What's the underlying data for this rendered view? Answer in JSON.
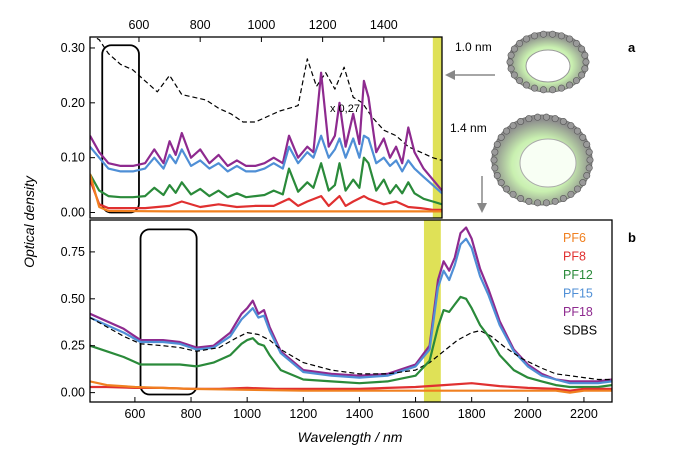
{
  "chart_data": [
    {
      "id": "a",
      "type": "line",
      "panel_label": "a",
      "xlabel": "",
      "ylabel": "",
      "xlim": [
        440,
        1590
      ],
      "ylim": [
        -0.01,
        0.32
      ],
      "x_ticks": [
        600,
        800,
        1000,
        1200,
        1400
      ],
      "y_ticks": [
        0.0,
        0.1,
        0.2,
        0.3
      ],
      "y_tick_labels": [
        "0.00",
        "0.10",
        "0.20",
        "0.30"
      ],
      "x_tick_position": "top",
      "highlight_band": [
        1560,
        1590
      ],
      "highlight_color": "#d9dc3a",
      "boxed_region": {
        "x": [
          480,
          600
        ],
        "y": [
          0.0,
          0.305
        ]
      },
      "annotation": "x 0,27",
      "series": [
        {
          "name": "SDBS",
          "color": "#000000",
          "dashed": true,
          "x": [
            440,
            470,
            500,
            540,
            580,
            620,
            660,
            700,
            740,
            780,
            820,
            860,
            900,
            940,
            980,
            1020,
            1060,
            1090,
            1120,
            1150,
            1180,
            1210,
            1240,
            1270,
            1300,
            1330,
            1360,
            1400,
            1440,
            1480,
            1520,
            1560,
            1590
          ],
          "y": [
            0.325,
            0.315,
            0.29,
            0.27,
            0.26,
            0.24,
            0.22,
            0.25,
            0.215,
            0.21,
            0.205,
            0.19,
            0.18,
            0.165,
            0.165,
            0.175,
            0.185,
            0.19,
            0.195,
            0.28,
            0.23,
            0.255,
            0.225,
            0.265,
            0.21,
            0.2,
            0.175,
            0.15,
            0.14,
            0.12,
            0.11,
            0.1,
            0.095
          ]
        },
        {
          "name": "PF18",
          "color": "#8e2a8f",
          "dashed": false,
          "x": [
            440,
            470,
            500,
            540,
            580,
            620,
            650,
            680,
            700,
            720,
            740,
            770,
            800,
            830,
            860,
            890,
            920,
            950,
            980,
            1010,
            1040,
            1070,
            1090,
            1120,
            1150,
            1170,
            1195,
            1220,
            1240,
            1255,
            1275,
            1300,
            1320,
            1335,
            1350,
            1375,
            1400,
            1420,
            1440,
            1460,
            1480,
            1500,
            1530,
            1560,
            1590
          ],
          "y": [
            0.14,
            0.11,
            0.09,
            0.085,
            0.085,
            0.09,
            0.115,
            0.09,
            0.13,
            0.105,
            0.145,
            0.1,
            0.115,
            0.09,
            0.105,
            0.085,
            0.095,
            0.085,
            0.085,
            0.09,
            0.1,
            0.09,
            0.14,
            0.1,
            0.12,
            0.11,
            0.255,
            0.12,
            0.14,
            0.2,
            0.12,
            0.18,
            0.125,
            0.24,
            0.21,
            0.11,
            0.135,
            0.1,
            0.12,
            0.09,
            0.155,
            0.11,
            0.08,
            0.06,
            0.04
          ]
        },
        {
          "name": "PF15",
          "color": "#4f8fd6",
          "dashed": false,
          "x": [
            440,
            470,
            500,
            540,
            580,
            620,
            650,
            680,
            700,
            720,
            740,
            770,
            800,
            830,
            860,
            890,
            920,
            950,
            980,
            1010,
            1040,
            1070,
            1090,
            1120,
            1150,
            1170,
            1195,
            1220,
            1240,
            1255,
            1275,
            1300,
            1320,
            1335,
            1350,
            1375,
            1400,
            1420,
            1440,
            1460,
            1480,
            1500,
            1530,
            1560,
            1590
          ],
          "y": [
            0.12,
            0.1,
            0.08,
            0.075,
            0.075,
            0.08,
            0.1,
            0.08,
            0.105,
            0.09,
            0.115,
            0.085,
            0.095,
            0.08,
            0.09,
            0.075,
            0.085,
            0.075,
            0.075,
            0.08,
            0.09,
            0.08,
            0.12,
            0.09,
            0.11,
            0.1,
            0.14,
            0.1,
            0.115,
            0.135,
            0.1,
            0.135,
            0.1,
            0.14,
            0.135,
            0.09,
            0.1,
            0.085,
            0.095,
            0.075,
            0.095,
            0.08,
            0.065,
            0.05,
            0.035
          ]
        },
        {
          "name": "PF12",
          "color": "#2a8a3a",
          "dashed": false,
          "x": [
            440,
            470,
            500,
            540,
            580,
            620,
            650,
            680,
            700,
            720,
            740,
            770,
            800,
            830,
            860,
            890,
            920,
            950,
            980,
            1010,
            1040,
            1070,
            1090,
            1120,
            1150,
            1170,
            1195,
            1220,
            1240,
            1255,
            1275,
            1300,
            1320,
            1335,
            1350,
            1375,
            1400,
            1420,
            1440,
            1460,
            1480,
            1500,
            1530,
            1560,
            1590
          ],
          "y": [
            0.07,
            0.04,
            0.03,
            0.028,
            0.028,
            0.03,
            0.045,
            0.032,
            0.05,
            0.036,
            0.055,
            0.033,
            0.043,
            0.03,
            0.04,
            0.028,
            0.035,
            0.028,
            0.03,
            0.032,
            0.04,
            0.033,
            0.08,
            0.038,
            0.055,
            0.045,
            0.09,
            0.04,
            0.05,
            0.09,
            0.04,
            0.06,
            0.045,
            0.1,
            0.09,
            0.04,
            0.06,
            0.035,
            0.05,
            0.035,
            0.055,
            0.035,
            0.025,
            0.02,
            0.015
          ]
        },
        {
          "name": "PF8",
          "color": "#e03030",
          "dashed": false,
          "x": [
            440,
            470,
            500,
            560,
            620,
            700,
            740,
            800,
            860,
            920,
            980,
            1040,
            1090,
            1120,
            1150,
            1195,
            1220,
            1255,
            1275,
            1300,
            1335,
            1350,
            1400,
            1440,
            1480,
            1520,
            1560,
            1590
          ],
          "y": [
            0.06,
            0.015,
            0.008,
            0.008,
            0.008,
            0.012,
            0.02,
            0.01,
            0.015,
            0.01,
            0.012,
            0.012,
            0.025,
            0.012,
            0.02,
            0.03,
            0.012,
            0.03,
            0.012,
            0.02,
            0.03,
            0.025,
            0.015,
            0.02,
            0.01,
            0.008,
            0.005,
            0.005
          ]
        },
        {
          "name": "PF6",
          "color": "#f08020",
          "dashed": false,
          "x": [
            440,
            470,
            500,
            700,
            900,
            1100,
            1300,
            1500,
            1590
          ],
          "y": [
            0.07,
            0.01,
            0.003,
            0.002,
            0.002,
            0.002,
            0.002,
            0.002,
            0.002
          ]
        }
      ]
    },
    {
      "id": "b",
      "type": "line",
      "panel_label": "b",
      "xlabel": "Wavelength / nm",
      "ylabel": "",
      "xlim": [
        440,
        2300
      ],
      "ylim": [
        -0.05,
        0.92
      ],
      "x_ticks": [
        600,
        800,
        1000,
        1200,
        1400,
        1600,
        1800,
        2000,
        2200
      ],
      "y_ticks": [
        0.0,
        0.25,
        0.5,
        0.75
      ],
      "y_tick_labels": [
        "0.00",
        "0.25",
        "0.50",
        "0.75"
      ],
      "highlight_band": [
        1630,
        1690
      ],
      "highlight_color": "#d9dc3a",
      "boxed_region": {
        "x": [
          620,
          820
        ],
        "y": [
          -0.01,
          0.87
        ]
      },
      "legend": {
        "position": "right",
        "entries": [
          "PF6",
          "PF8",
          "PF12",
          "PF15",
          "PF18",
          "SDBS"
        ]
      },
      "series": [
        {
          "name": "PF18",
          "color": "#8e2a8f",
          "dashed": false,
          "x": [
            440,
            500,
            560,
            620,
            700,
            760,
            820,
            880,
            940,
            980,
            1000,
            1020,
            1040,
            1060,
            1080,
            1120,
            1200,
            1300,
            1400,
            1500,
            1600,
            1650,
            1680,
            1700,
            1720,
            1740,
            1760,
            1780,
            1800,
            1830,
            1860,
            1900,
            1950,
            2000,
            2050,
            2100,
            2150,
            2200,
            2250,
            2300
          ],
          "y": [
            0.42,
            0.38,
            0.34,
            0.28,
            0.28,
            0.27,
            0.24,
            0.25,
            0.32,
            0.42,
            0.45,
            0.49,
            0.42,
            0.44,
            0.35,
            0.22,
            0.12,
            0.1,
            0.09,
            0.1,
            0.15,
            0.25,
            0.6,
            0.7,
            0.65,
            0.72,
            0.85,
            0.88,
            0.82,
            0.66,
            0.55,
            0.38,
            0.23,
            0.15,
            0.1,
            0.07,
            0.06,
            0.06,
            0.06,
            0.07
          ]
        },
        {
          "name": "PF15",
          "color": "#4f8fd6",
          "dashed": false,
          "x": [
            440,
            500,
            560,
            620,
            700,
            760,
            820,
            880,
            940,
            980,
            1000,
            1020,
            1040,
            1060,
            1080,
            1120,
            1200,
            1300,
            1400,
            1500,
            1600,
            1650,
            1680,
            1700,
            1720,
            1740,
            1760,
            1780,
            1800,
            1830,
            1860,
            1900,
            1950,
            2000,
            2050,
            2100,
            2150,
            2200,
            2250,
            2300
          ],
          "y": [
            0.4,
            0.36,
            0.32,
            0.27,
            0.27,
            0.26,
            0.23,
            0.24,
            0.3,
            0.39,
            0.42,
            0.45,
            0.4,
            0.41,
            0.33,
            0.21,
            0.11,
            0.09,
            0.08,
            0.09,
            0.14,
            0.23,
            0.56,
            0.65,
            0.6,
            0.68,
            0.79,
            0.82,
            0.77,
            0.62,
            0.52,
            0.36,
            0.22,
            0.14,
            0.09,
            0.07,
            0.05,
            0.05,
            0.05,
            0.06
          ]
        },
        {
          "name": "SDBS",
          "color": "#000000",
          "dashed": true,
          "x": [
            440,
            500,
            560,
            620,
            700,
            760,
            820,
            900,
            960,
            1000,
            1040,
            1080,
            1120,
            1200,
            1300,
            1400,
            1500,
            1600,
            1650,
            1700,
            1750,
            1800,
            1830,
            1870,
            1920,
            1980,
            2050,
            2100,
            2150,
            2200,
            2250,
            2300
          ],
          "y": [
            0.4,
            0.35,
            0.3,
            0.26,
            0.25,
            0.24,
            0.22,
            0.24,
            0.29,
            0.32,
            0.31,
            0.28,
            0.23,
            0.16,
            0.12,
            0.1,
            0.1,
            0.12,
            0.16,
            0.22,
            0.28,
            0.32,
            0.33,
            0.3,
            0.24,
            0.18,
            0.13,
            0.1,
            0.09,
            0.08,
            0.07,
            0.07
          ]
        },
        {
          "name": "PF12",
          "color": "#2a8a3a",
          "dashed": false,
          "x": [
            440,
            500,
            560,
            620,
            700,
            760,
            820,
            880,
            940,
            980,
            1000,
            1020,
            1040,
            1060,
            1080,
            1120,
            1200,
            1300,
            1400,
            1500,
            1600,
            1650,
            1680,
            1700,
            1720,
            1740,
            1760,
            1780,
            1800,
            1830,
            1860,
            1900,
            1950,
            2000,
            2050,
            2100,
            2150,
            2200,
            2250,
            2300
          ],
          "y": [
            0.25,
            0.22,
            0.19,
            0.15,
            0.15,
            0.15,
            0.14,
            0.16,
            0.2,
            0.26,
            0.28,
            0.29,
            0.26,
            0.25,
            0.2,
            0.12,
            0.07,
            0.06,
            0.05,
            0.06,
            0.09,
            0.17,
            0.35,
            0.44,
            0.43,
            0.47,
            0.51,
            0.5,
            0.45,
            0.36,
            0.3,
            0.2,
            0.12,
            0.08,
            0.06,
            0.04,
            0.03,
            0.03,
            0.03,
            0.04
          ]
        },
        {
          "name": "PF8",
          "color": "#e03030",
          "dashed": false,
          "x": [
            440,
            500,
            600,
            700,
            800,
            900,
            1000,
            1100,
            1200,
            1300,
            1400,
            1500,
            1600,
            1700,
            1800,
            1900,
            2000,
            2100,
            2150,
            2200,
            2300
          ],
          "y": [
            0.03,
            0.03,
            0.025,
            0.025,
            0.02,
            0.02,
            0.025,
            0.02,
            0.02,
            0.02,
            0.02,
            0.025,
            0.03,
            0.04,
            0.05,
            0.035,
            0.025,
            0.02,
            0.01,
            0.02,
            0.02
          ]
        },
        {
          "name": "PF6",
          "color": "#f08020",
          "dashed": false,
          "x": [
            440,
            500,
            600,
            800,
            1000,
            1200,
            1400,
            1600,
            1800,
            2000,
            2100,
            2150,
            2200,
            2300
          ],
          "y": [
            0.06,
            0.04,
            0.03,
            0.02,
            0.015,
            0.01,
            0.01,
            0.01,
            0.01,
            0.01,
            0.01,
            0.0,
            0.01,
            0.01
          ]
        }
      ]
    }
  ],
  "labels": {
    "y_axis": "Optical density",
    "x_axis": "Wavelength / nm",
    "tube_small": "1.0 nm",
    "tube_large": "1.4 nm"
  },
  "legend_colors": {
    "PF6": "#f08020",
    "PF8": "#e03030",
    "PF12": "#2a8a3a",
    "PF15": "#4f8fd6",
    "PF18": "#8e2a8f",
    "SDBS": "#000000"
  },
  "icons": [
    "nanotube-small-icon",
    "nanotube-large-icon",
    "arrow-left-icon",
    "arrow-down-icon"
  ]
}
